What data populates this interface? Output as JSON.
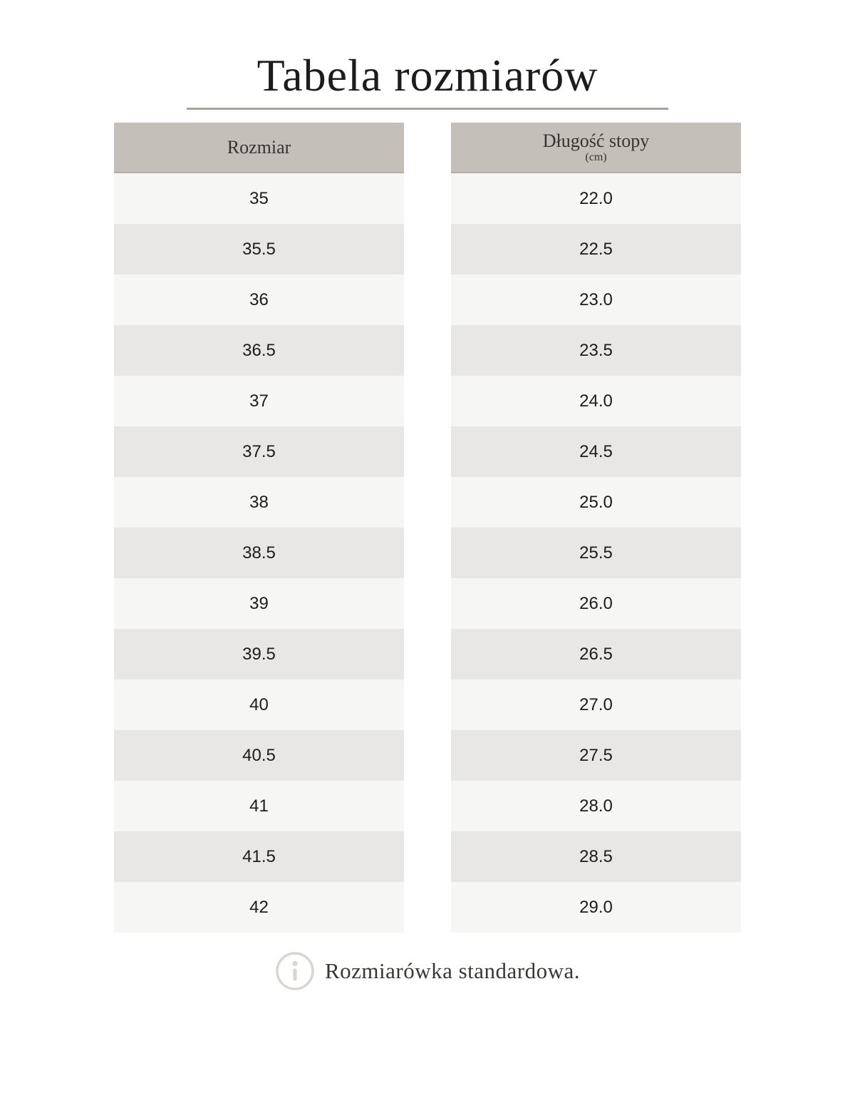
{
  "page": {
    "title": "Tabela rozmiarów",
    "footnote": "Rozmiarówka standardowa."
  },
  "table": {
    "col1_header": "Rozmiar",
    "col2_header": "Długość stopy",
    "col2_subheader": "(cm)",
    "rows": [
      {
        "size": "35",
        "length": "22.0"
      },
      {
        "size": "35.5",
        "length": "22.5"
      },
      {
        "size": "36",
        "length": "23.0"
      },
      {
        "size": "36.5",
        "length": "23.5"
      },
      {
        "size": "37",
        "length": "24.0"
      },
      {
        "size": "37.5",
        "length": "24.5"
      },
      {
        "size": "38",
        "length": "25.0"
      },
      {
        "size": "38.5",
        "length": "25.5"
      },
      {
        "size": "39",
        "length": "26.0"
      },
      {
        "size": "39.5",
        "length": "26.5"
      },
      {
        "size": "40",
        "length": "27.0"
      },
      {
        "size": "40.5",
        "length": "27.5"
      },
      {
        "size": "41",
        "length": "28.0"
      },
      {
        "size": "41.5",
        "length": "28.5"
      },
      {
        "size": "42",
        "length": "29.0"
      }
    ]
  },
  "icons": {
    "info": "info-icon"
  },
  "colors": {
    "header_bg": "#c4bfb8",
    "header_border": "#b2aea7",
    "row_light": "#f6f6f5",
    "row_dark": "#e8e7e5",
    "title_underline": "#a7a39d",
    "title_text": "#1e1c1a",
    "header_text": "#38332e",
    "cell_text": "#1c1c1c",
    "footnote_text": "#3a3733",
    "info_icon": "#d9d6d2"
  }
}
